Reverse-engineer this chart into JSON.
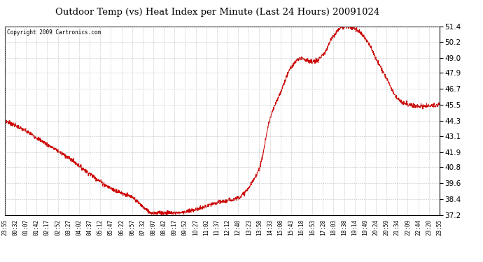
{
  "title": "Outdoor Temp (vs) Heat Index per Minute (Last 24 Hours) 20091024",
  "copyright": "Copyright 2009 Cartronics.com",
  "line_color": "#cc0000",
  "background_color": "#ffffff",
  "grid_color": "#bbbbbb",
  "ylim": [
    37.2,
    51.4
  ],
  "yticks": [
    37.2,
    38.4,
    39.6,
    40.8,
    41.9,
    43.1,
    44.3,
    45.5,
    46.7,
    47.9,
    49.0,
    50.2,
    51.4
  ],
  "xtick_labels": [
    "23:55",
    "00:32",
    "01:07",
    "01:42",
    "02:17",
    "02:52",
    "03:27",
    "04:02",
    "04:37",
    "05:12",
    "05:47",
    "06:22",
    "06:57",
    "07:32",
    "08:07",
    "08:42",
    "09:17",
    "09:52",
    "10:27",
    "11:02",
    "11:37",
    "12:12",
    "12:48",
    "13:23",
    "13:58",
    "14:33",
    "15:08",
    "15:43",
    "16:18",
    "16:53",
    "17:28",
    "18:03",
    "18:38",
    "19:14",
    "19:49",
    "20:24",
    "20:59",
    "21:34",
    "22:09",
    "22:44",
    "23:20",
    "23:55"
  ],
  "keypoints_x": [
    0,
    2,
    4,
    6,
    8,
    10,
    12,
    14,
    16,
    18,
    20,
    22,
    24,
    25,
    26,
    27,
    28,
    29,
    30,
    31,
    32,
    33,
    34,
    35,
    36,
    37,
    38,
    39,
    40,
    41
  ],
  "keypoints_y": [
    44.3,
    43.5,
    42.5,
    41.5,
    40.3,
    39.2,
    38.5,
    37.35,
    37.35,
    37.6,
    38.1,
    38.5,
    40.7,
    44.4,
    46.4,
    48.3,
    49.0,
    48.7,
    49.2,
    50.7,
    51.4,
    51.2,
    50.5,
    49.0,
    47.5,
    46.0,
    45.5,
    45.4,
    45.4,
    45.5
  ]
}
